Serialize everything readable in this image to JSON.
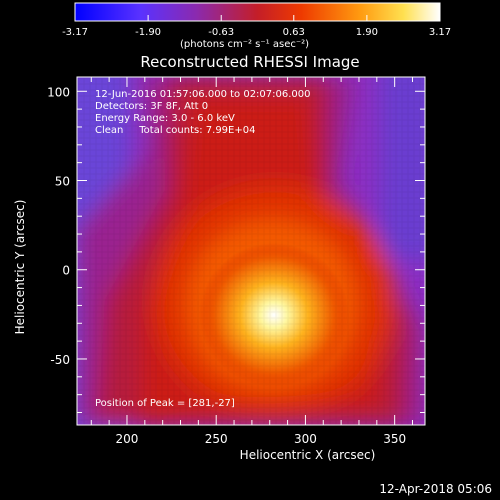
{
  "colorbar": {
    "ticks": [
      "-3.17",
      "-1.90",
      "-0.63",
      "0.63",
      "1.90",
      "3.17"
    ],
    "unit_label": "(photons cm⁻² s⁻¹ asec⁻²)",
    "range": [
      -3.17,
      3.17
    ]
  },
  "info": {
    "time": "12-Jun-2016 01:57:06.000 to 02:07:06.000",
    "detectors": "Detectors: 3F 8F, Att 0",
    "energy": "Energy Range: 3.0 - 6.0 keV",
    "method": "Clean     Total counts: 7.99E+04"
  },
  "footer": {
    "date": "12-Apr-2018 05:06"
  },
  "chart_data": {
    "type": "heatmap",
    "title": "Reconstructed RHESSI Image",
    "xlabel": "Heliocentric X (arcsec)",
    "ylabel": "Heliocentric Y (arcsec)",
    "xlim": [
      172,
      367
    ],
    "ylim": [
      -87,
      108
    ],
    "x_ticks": [
      200,
      250,
      300,
      350
    ],
    "y_ticks": [
      -50,
      0,
      50,
      100
    ],
    "peak": {
      "x": 281,
      "y": -27
    },
    "peak_label": "Position of Peak = [281,-27]",
    "colormap": "hot (black-red-yellow-white) with purple/blue low end",
    "colors": {
      "low": "#2a00ff",
      "mid_low": "#8a2ac6",
      "mid": "#d21e00",
      "high": "#ffee40",
      "max": "#ffffff"
    },
    "grid": false
  }
}
